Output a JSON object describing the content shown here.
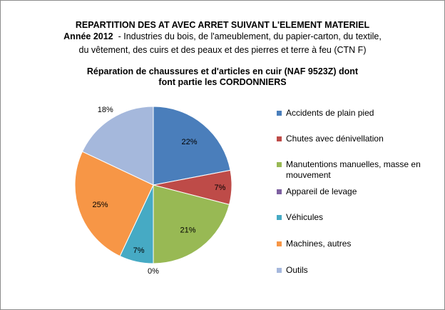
{
  "header": {
    "title": "REPARTITION DES AT AVEC ARRET SUIVANT L'ELEMENT MATERIEL",
    "year_label": "Année 2012",
    "subtitle_line1": "  - Industries du bois, de l'ameublement, du papier-carton, du textile,",
    "subtitle_line2": "du vêtement, des cuirs et des peaux et des pierres et terre à feu (CTN  F)",
    "sector_line1": "Réparation de chaussures et d'articles en cuir (NAF 9523Z)  dont",
    "sector_line2": "font partie les CORDONNIERS"
  },
  "chart_data": {
    "type": "pie",
    "categories": [
      "Accidents de plain pied",
      "Chutes avec dénivellation",
      "Manutentions manuelles, masse en mouvement",
      "Appareil de levage",
      "Véhicules",
      "Machines, autres",
      "Outils"
    ],
    "values": [
      22,
      7,
      21,
      0,
      7,
      25,
      18
    ],
    "labels": [
      "22%",
      "7%",
      "21%",
      "0%",
      "7%",
      "25%",
      "18%"
    ],
    "colors": [
      "#4a7ebb",
      "#be4b48",
      "#98b954",
      "#7d60a0",
      "#46aac4",
      "#f79646",
      "#a5b8dc"
    ],
    "legend_position": "right"
  }
}
